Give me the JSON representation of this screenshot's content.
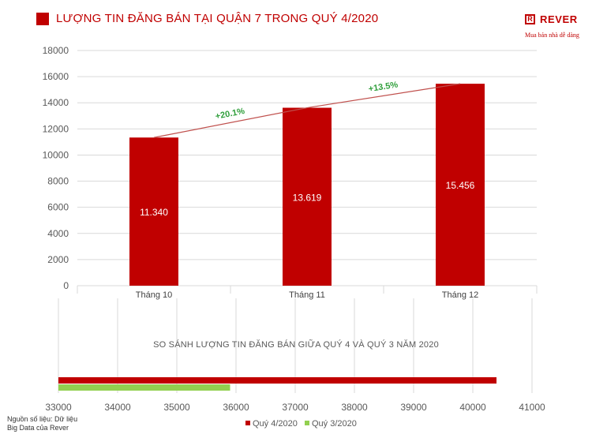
{
  "header": {
    "title": "LƯỢNG TIN ĐĂNG BÁN TẠI QUẬN 7 TRONG QUÝ 4/2020"
  },
  "logo": {
    "mark": "R",
    "word": "REVER",
    "slogan": "Mua bán nhà dễ dàng"
  },
  "source": {
    "line1": "Nguồn số liệu: Dữ liệu",
    "line2": "Big Data của Rever"
  },
  "chart_data": [
    {
      "type": "bar",
      "categories": [
        "Tháng 10",
        "Tháng 11",
        "Tháng 12"
      ],
      "values": [
        11340,
        13619,
        15456
      ],
      "value_labels": [
        "11.340",
        "13.619",
        "15.456"
      ],
      "ylim": [
        0,
        18000
      ],
      "yticks": [
        0,
        2000,
        4000,
        6000,
        8000,
        10000,
        12000,
        14000,
        16000,
        18000
      ],
      "grid": true,
      "bar_color": "#c00000",
      "trend_line": true,
      "annotations": [
        "+20.1%",
        "+13.5%"
      ],
      "annotation_color": "#2e9e3a"
    },
    {
      "type": "bar",
      "orientation": "horizontal",
      "title": "SO SÁNH LƯỢNG TIN ĐĂNG BÁN GIỮA QUÝ 4 VÀ QUÝ 3 NĂM 2020",
      "series": [
        {
          "name": "Quý 4/2020",
          "value": 40400,
          "color": "#c00000"
        },
        {
          "name": "Quý 3/2020",
          "value": 35900,
          "color": "#92d050"
        }
      ],
      "xlim": [
        33000,
        41000
      ],
      "xticks": [
        33000,
        34000,
        35000,
        36000,
        37000,
        38000,
        39000,
        40000,
        41000
      ],
      "grid": true,
      "legend": "bottom"
    }
  ]
}
